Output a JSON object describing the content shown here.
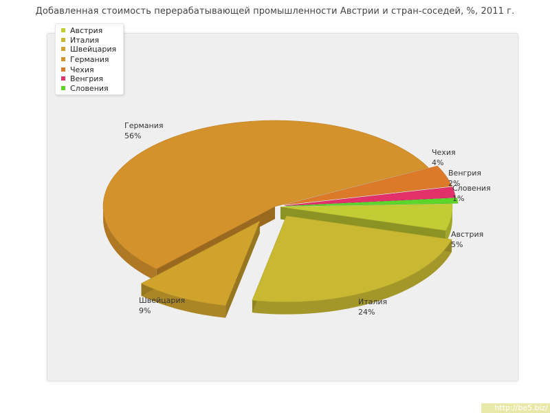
{
  "chart_data": {
    "type": "pie",
    "title": "Добавленная стоимость перерабатывающей промышленности Австрии и стран-соседей, %, 2011 г.",
    "slices": [
      {
        "name": "Австрия",
        "value": 5,
        "label": "5%",
        "color": "#c2cc34"
      },
      {
        "name": "Италия",
        "value": 24,
        "label": "24%",
        "color": "#c8b832"
      },
      {
        "name": "Швейцария",
        "value": 9,
        "label": "9%",
        "color": "#d0a42c"
      },
      {
        "name": "Германия",
        "value": 56,
        "label": "56%",
        "color": "#d4922c"
      },
      {
        "name": "Чехия",
        "value": 4,
        "label": "4%",
        "color": "#dc7a2a"
      },
      {
        "name": "Венгрия",
        "value": 2,
        "label": "2%",
        "color": "#e2306a"
      },
      {
        "name": "Словения",
        "value": 1,
        "label": "1%",
        "color": "#5cd62a"
      }
    ],
    "legend": "top-left"
  },
  "watermark": "http://be5.biz/"
}
